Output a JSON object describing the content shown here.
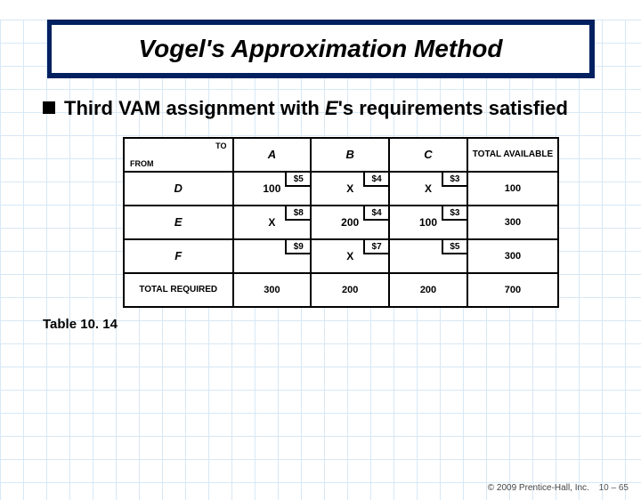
{
  "title": "Vogel's Approximation Method",
  "bullet": {
    "prefix": "Third VAM assignment with ",
    "italic": "E",
    "suffix": "'s requirements satisfied"
  },
  "table": {
    "to_label": "TO",
    "from_label": "FROM",
    "dest_headers": [
      "A",
      "B",
      "C"
    ],
    "total_avail_header": "TOTAL AVAILABLE",
    "total_req_header": "TOTAL REQUIRED",
    "sources": [
      {
        "name": "D",
        "cells": [
          {
            "cost": "$5",
            "alloc": "100"
          },
          {
            "cost": "$4",
            "alloc": "X"
          },
          {
            "cost": "$3",
            "alloc": "X"
          }
        ],
        "available": "100"
      },
      {
        "name": "E",
        "cells": [
          {
            "cost": "$8",
            "alloc": "X"
          },
          {
            "cost": "$4",
            "alloc": "200"
          },
          {
            "cost": "$3",
            "alloc": "100"
          }
        ],
        "available": "300"
      },
      {
        "name": "F",
        "cells": [
          {
            "cost": "$9",
            "alloc": ""
          },
          {
            "cost": "$7",
            "alloc": "X"
          },
          {
            "cost": "$5",
            "alloc": ""
          }
        ],
        "available": "300"
      }
    ],
    "required": [
      "300",
      "200",
      "200"
    ],
    "grand_total": "700"
  },
  "caption": "Table 10. 14",
  "footer": {
    "copyright": "© 2009 Prentice-Hall, Inc.",
    "page": "10 – 65"
  },
  "colors": {
    "title_bg": "#002060",
    "grid": "#d8e8f5",
    "border": "#000000",
    "text": "#000000"
  }
}
